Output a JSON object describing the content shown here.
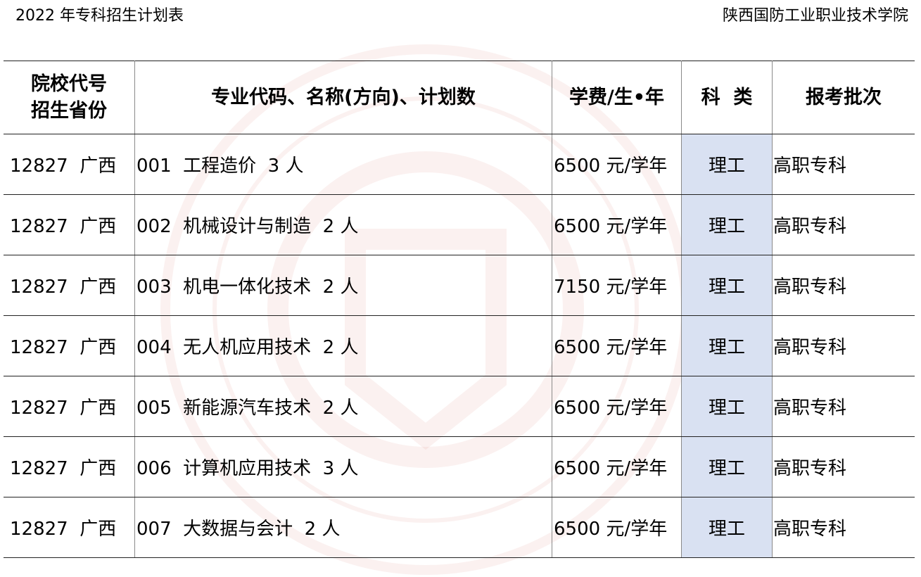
{
  "header": {
    "title": "2022 年专科招生计划表",
    "institution": "陕西国防工业职业技术学院"
  },
  "table": {
    "columns": [
      "院校代号\n招生省份",
      "专业代码、名称(方向)、计划数",
      "学费/生•年",
      "科  类",
      "报考批次"
    ],
    "column_lines": [
      [
        "院校代号",
        "招生省份"
      ]
    ],
    "highlight_color": "#d9e1f2",
    "rows": [
      {
        "school": "12827  广西",
        "major": "001  工程造价  3 人",
        "fee": "6500 元/学年",
        "category": "理工",
        "batch": "高职专科"
      },
      {
        "school": "12827  广西",
        "major": "002  机械设计与制造  2 人",
        "fee": "6500 元/学年",
        "category": "理工",
        "batch": "高职专科"
      },
      {
        "school": "12827  广西",
        "major": "003  机电一体化技术  2 人",
        "fee": "7150 元/学年",
        "category": "理工",
        "batch": "高职专科"
      },
      {
        "school": "12827  广西",
        "major": "004  无人机应用技术  2 人",
        "fee": "6500 元/学年",
        "category": "理工",
        "batch": "高职专科"
      },
      {
        "school": "12827  广西",
        "major": "005  新能源汽车技术  2 人",
        "fee": "6500 元/学年",
        "category": "理工",
        "batch": "高职专科"
      },
      {
        "school": "12827  广西",
        "major": "006  计算机应用技术  3 人",
        "fee": "6500 元/学年",
        "category": "理工",
        "batch": "高职专科"
      },
      {
        "school": "12827  广西",
        "major": "007  大数据与会计  2 人",
        "fee": "6500 元/学年",
        "category": "理工",
        "batch": "高职专科"
      }
    ]
  },
  "watermark": {
    "icon": "school-seal-watermark",
    "color": "#c0392b"
  }
}
